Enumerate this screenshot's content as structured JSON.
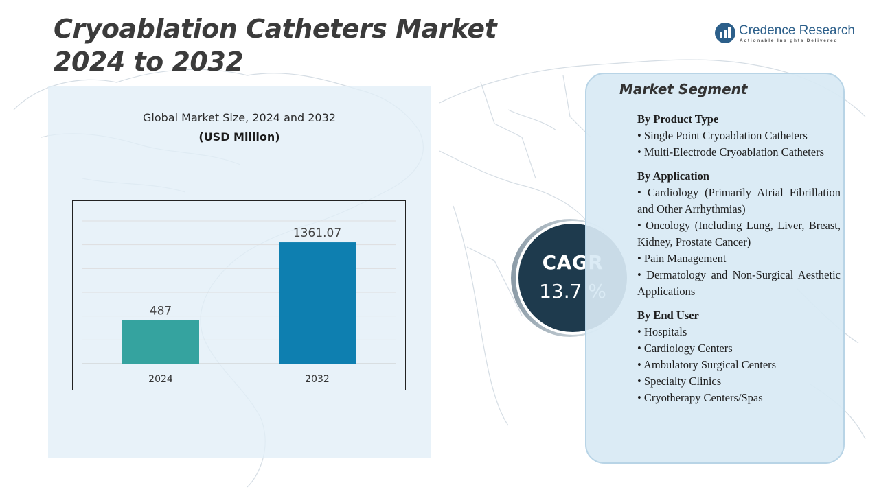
{
  "header": {
    "title_line1": "Cryoablation Catheters Market",
    "title_line2": "2024 to 2032"
  },
  "brand": {
    "name": "Credence Research",
    "tagline": "Actionable Insights Delivered",
    "color": "#2c5f8a"
  },
  "chart_panel": {
    "heading": "Global Market Size,  2024 and 2032",
    "unit": "(USD Million)"
  },
  "chart_data": {
    "type": "bar",
    "categories": [
      "2024",
      "2032"
    ],
    "values": [
      487,
      1361.07
    ],
    "value_labels": [
      "487",
      "1361.07"
    ],
    "bar_colors": [
      "#35a39f",
      "#0e7fb0"
    ],
    "title": "Global Market Size,  2024 and 2032",
    "ylabel": "(USD Million)",
    "ylim": [
      0,
      1600
    ],
    "grid": true,
    "legend": "none"
  },
  "cagr": {
    "label": "CAGR",
    "value": "13.7 %"
  },
  "segments": {
    "title": "Market Segment",
    "groups": [
      {
        "title": "By Product Type",
        "items": [
          "• Single Point Cryoablation Catheters",
          "• Multi-Electrode Cryoablation Catheters"
        ]
      },
      {
        "title": "By Application",
        "items": [
          "• Cardiology (Primarily Atrial Fibrillation and Other Arrhythmias)",
          "• Oncology (Including Lung, Liver, Breast, Kidney, Prostate Cancer)",
          "• Pain Management",
          "• Dermatology and Non-Surgical Aesthetic Applications"
        ]
      },
      {
        "title": "By End User",
        "items": [
          "• Hospitals",
          "• Cardiology Centers",
          "• Ambulatory Surgical Centers",
          "• Specialty Clinics",
          "• Cryotherapy Centers/Spas"
        ]
      }
    ]
  }
}
